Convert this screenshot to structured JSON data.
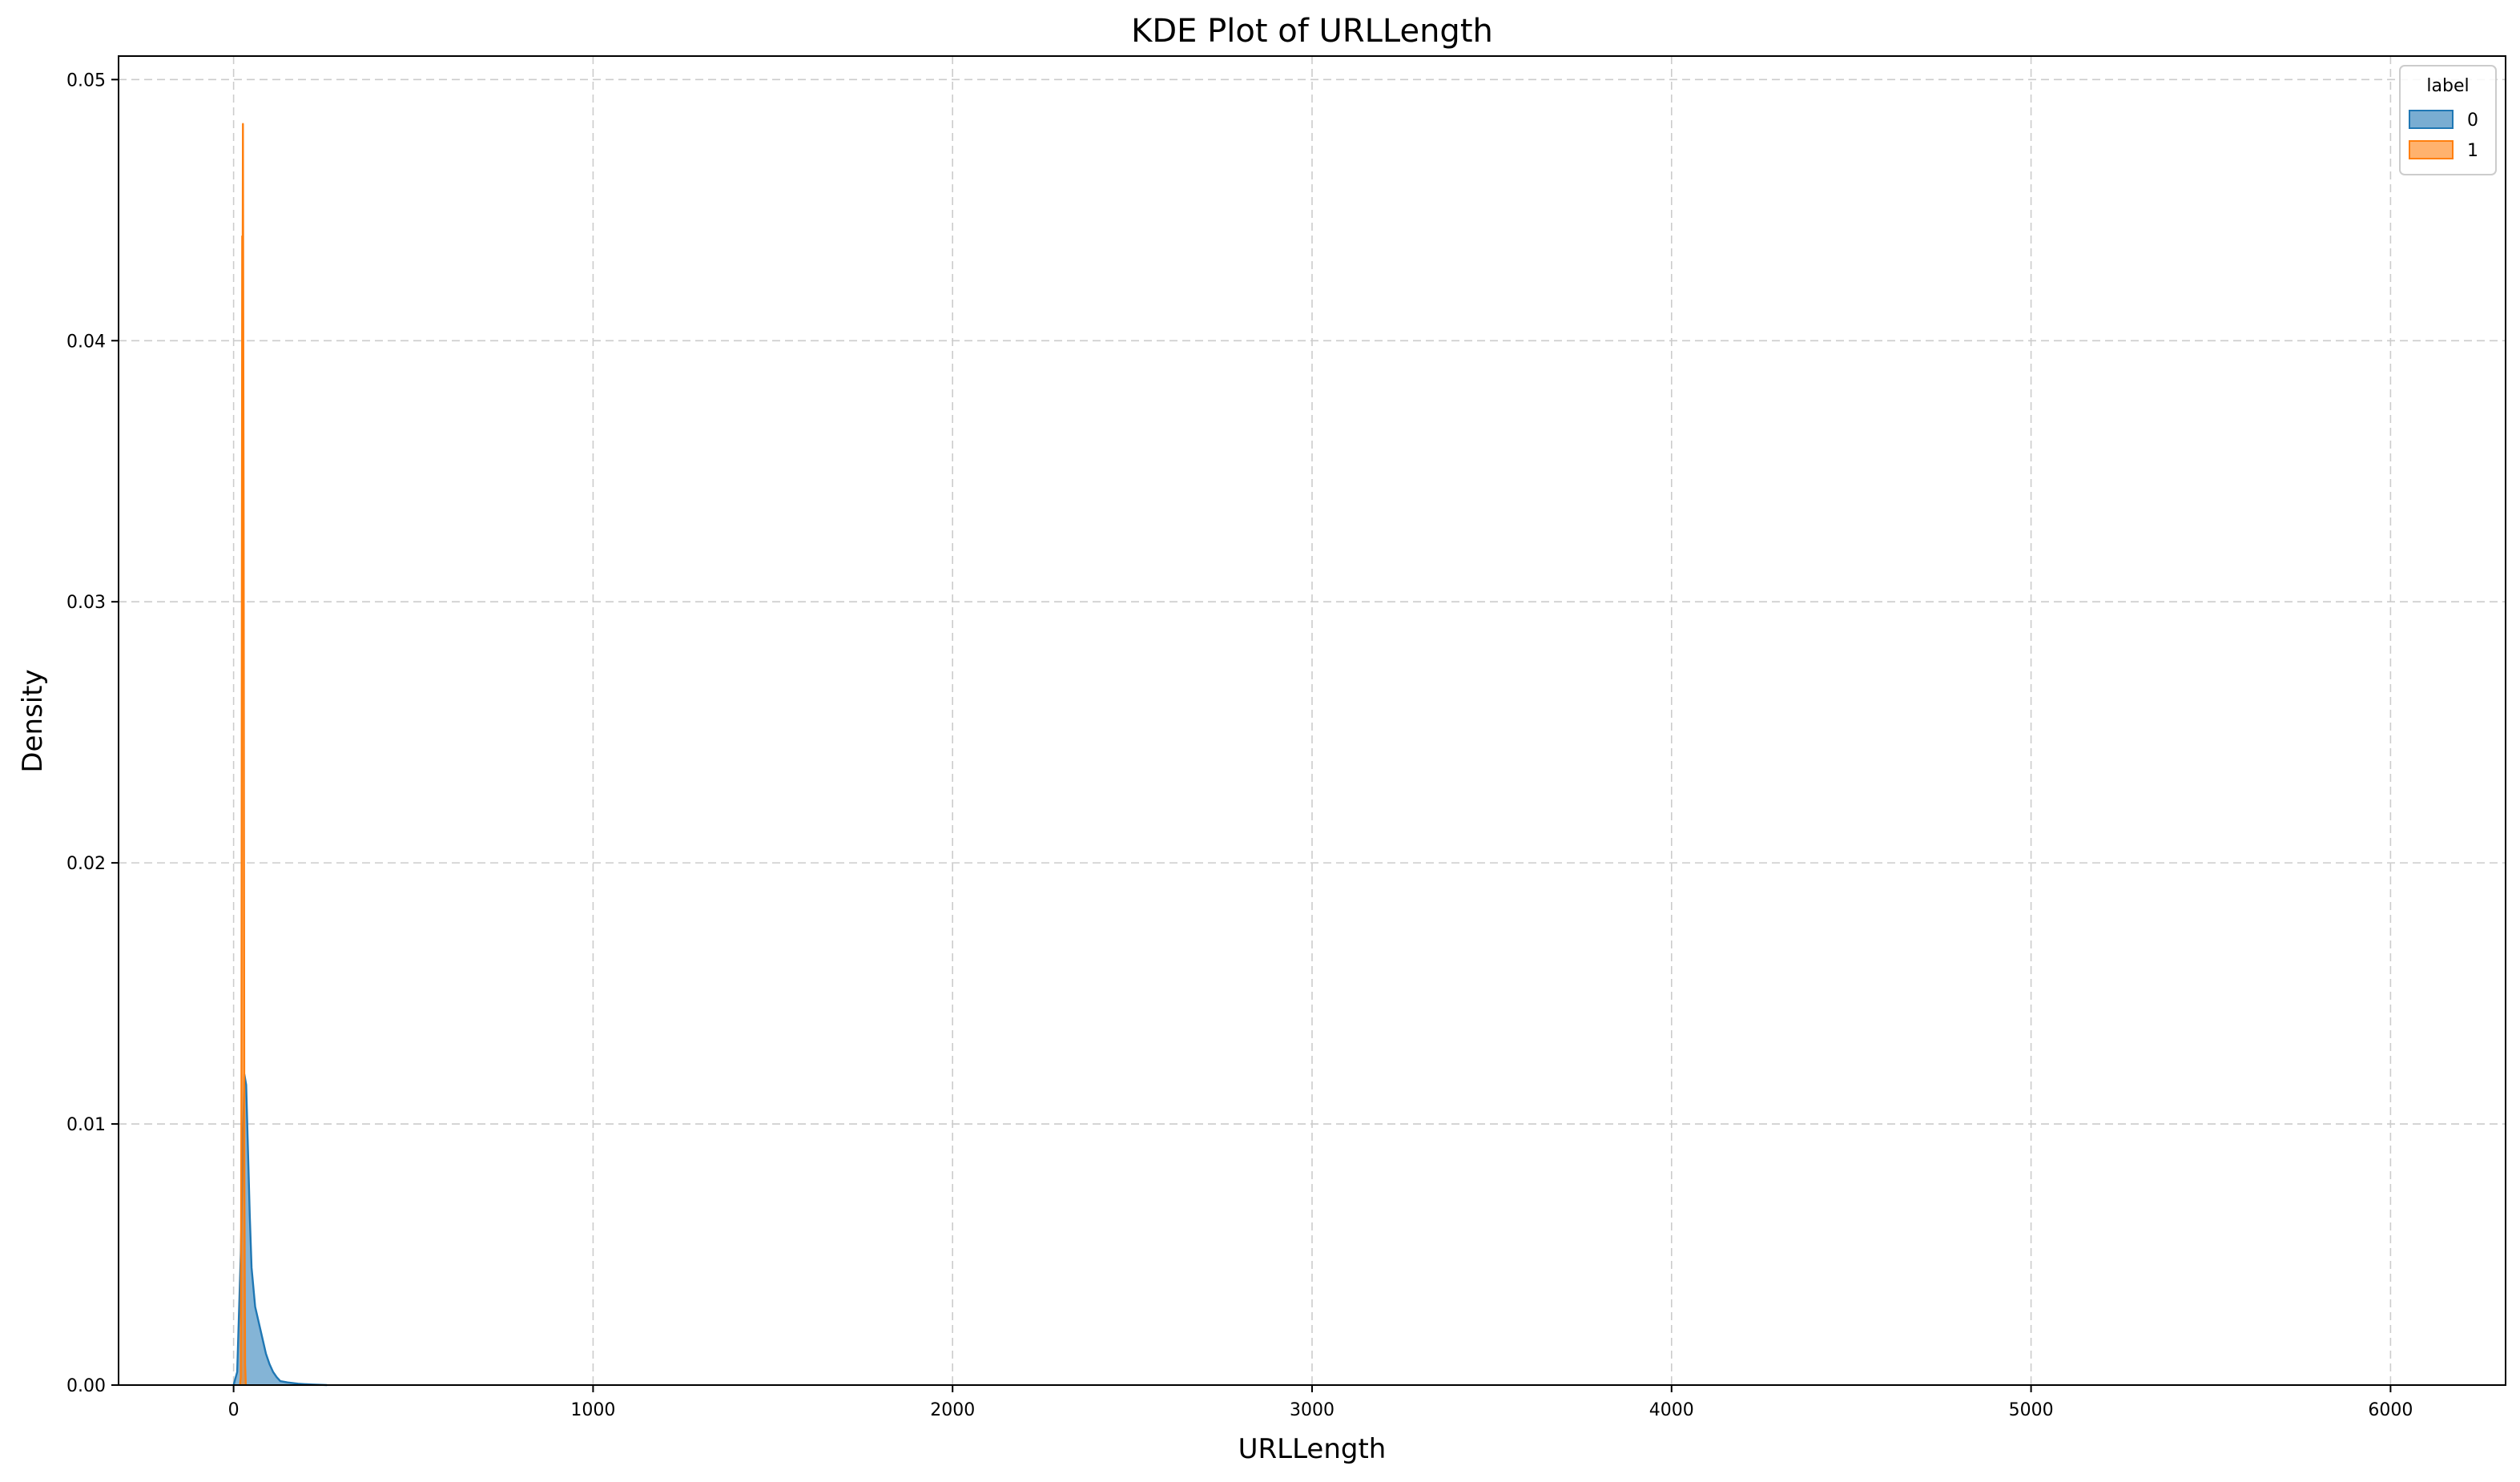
{
  "chart_data": {
    "type": "area",
    "title": "KDE Plot of URLLength",
    "xlabel": "URLLength",
    "ylabel": "Density",
    "xlim": [
      -320,
      6320
    ],
    "ylim": [
      0,
      0.0509
    ],
    "grid": true,
    "x_ticks": [
      0,
      1000,
      2000,
      3000,
      4000,
      5000,
      6000
    ],
    "x_tick_labels": [
      "0",
      "1000",
      "2000",
      "3000",
      "4000",
      "5000",
      "6000"
    ],
    "y_ticks": [
      0.0,
      0.01,
      0.02,
      0.03,
      0.04,
      0.05
    ],
    "y_tick_labels": [
      "0.00",
      "0.01",
      "0.02",
      "0.03",
      "0.04",
      "0.05"
    ],
    "legend": {
      "title": "label",
      "placement": "top-right",
      "entries": [
        "0",
        "1"
      ]
    },
    "series": [
      {
        "name": "0",
        "color": "#1f77b4",
        "x": [
          0,
          10,
          20,
          25,
          30,
          35,
          40,
          45,
          50,
          60,
          70,
          80,
          90,
          100,
          110,
          120,
          130,
          150,
          180,
          220,
          260
        ],
        "y": [
          0,
          0.0005,
          0.005,
          0.0085,
          0.0119,
          0.0115,
          0.009,
          0.0065,
          0.0045,
          0.003,
          0.0024,
          0.0018,
          0.0012,
          0.0008,
          0.0005,
          0.0003,
          0.00015,
          0.0001,
          5e-05,
          2e-05,
          0
        ]
      },
      {
        "name": "1",
        "color": "#ff7f0e",
        "x": [
          18,
          20,
          22,
          23,
          24,
          25,
          26,
          27,
          28,
          29,
          30,
          32,
          34
        ],
        "y": [
          0,
          0.0003,
          0.012,
          0.03,
          0.044,
          0.041,
          0.0483,
          0.04,
          0.033,
          0.02,
          0.008,
          0.0008,
          0
        ]
      }
    ]
  }
}
